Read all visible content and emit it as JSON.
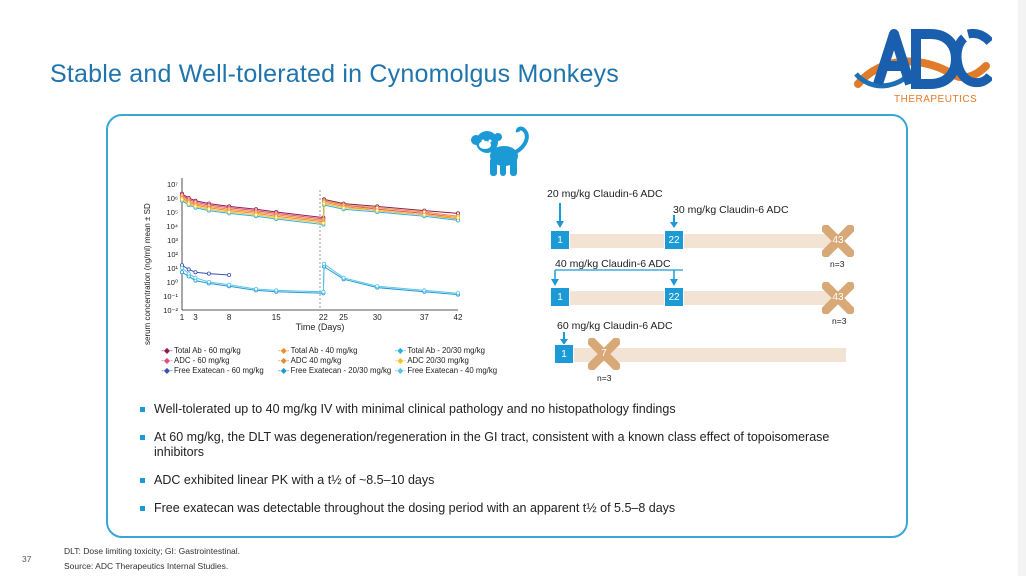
{
  "slide": {
    "title": "Stable and Well-tolerated in Cynomolgus Monkeys",
    "page_number": "37"
  },
  "logo": {
    "brand": "ADC",
    "subtitle": "THERAPEUTICS"
  },
  "chart_data": {
    "type": "line",
    "title": "",
    "ylabel": "serum concentration (ng/ml) mean ± SD",
    "xlabel": "Time (Days)",
    "x_ticks": [
      "1",
      "3",
      "8",
      "15",
      "22",
      "25",
      "30",
      "37",
      "42"
    ],
    "y_ticks": [
      "10⁷",
      "10⁶",
      "10⁵",
      "10⁴",
      "10³",
      "10²",
      "10¹",
      "10⁰",
      "10⁻¹",
      "10⁻²"
    ],
    "ylim": [
      -2,
      7
    ],
    "xlim": [
      1,
      42
    ],
    "y_scale": "log10",
    "series": [
      {
        "name": "Total Ab - 60 mg/kg",
        "color": "#8b1e4f",
        "x": [
          1,
          2,
          3,
          5,
          8,
          12,
          15,
          22,
          22.1,
          25,
          30,
          37,
          42
        ],
        "y": [
          6.3,
          6.0,
          5.8,
          5.6,
          5.4,
          5.2,
          5.0,
          4.6,
          5.9,
          5.6,
          5.4,
          5.1,
          4.9
        ]
      },
      {
        "name": "ADC - 60 mg/kg",
        "color": "#e0507a",
        "x": [
          1,
          2,
          3,
          5,
          8,
          12,
          15,
          22,
          22.1,
          25,
          30,
          37,
          42
        ],
        "y": [
          6.2,
          5.9,
          5.7,
          5.5,
          5.3,
          5.1,
          4.9,
          4.5,
          5.8,
          5.5,
          5.2,
          4.9,
          4.6
        ]
      },
      {
        "name": "Free Exatecan - 60 mg/kg",
        "color": "#3d4fb5",
        "x": [
          1,
          2,
          3,
          5,
          8
        ],
        "y": [
          1.2,
          0.9,
          0.7,
          0.6,
          0.5
        ]
      },
      {
        "name": "Total Ab - 40 mg/kg",
        "color": "#f08c2e",
        "x": [
          1,
          2,
          3,
          5,
          8,
          12,
          15,
          22,
          22.1,
          25,
          30,
          37,
          42
        ],
        "y": [
          6.1,
          5.8,
          5.6,
          5.4,
          5.2,
          5.0,
          4.8,
          4.4,
          5.8,
          5.5,
          5.3,
          5.0,
          4.7
        ]
      },
      {
        "name": "ADC 40 mg/kg",
        "color": "#e88a3a",
        "x": [
          1,
          2,
          3,
          5,
          8,
          12,
          15,
          22,
          22.1,
          25,
          30,
          37,
          42
        ],
        "y": [
          6.0,
          5.7,
          5.5,
          5.3,
          5.1,
          4.9,
          4.7,
          4.3,
          5.7,
          5.4,
          5.1,
          4.8,
          4.5
        ]
      },
      {
        "name": "Free Exatecan - 20/30 mg/kg",
        "color": "#1f9ad6",
        "x": [
          1,
          2,
          3,
          5,
          8,
          12,
          15,
          22,
          22.1,
          25,
          30,
          37,
          42
        ],
        "y": [
          0.7,
          0.4,
          0.1,
          -0.1,
          -0.3,
          -0.6,
          -0.7,
          -0.8,
          1.1,
          0.2,
          -0.4,
          -0.7,
          -0.9
        ]
      },
      {
        "name": "Total Ab - 20/30 mg/kg",
        "color": "#2cb0e3",
        "x": [
          1,
          2,
          3,
          5,
          8,
          12,
          15,
          22,
          22.1,
          25,
          30,
          37,
          42
        ],
        "y": [
          5.8,
          5.5,
          5.3,
          5.1,
          4.9,
          4.7,
          4.5,
          4.1,
          5.5,
          5.2,
          5.0,
          4.7,
          4.4
        ]
      },
      {
        "name": "ADC 20/30 mg/kg",
        "color": "#f2c12e",
        "x": [
          1,
          2,
          3,
          5,
          8,
          12,
          15,
          22,
          22.1,
          25,
          30,
          37,
          42
        ],
        "y": [
          5.9,
          5.6,
          5.4,
          5.2,
          5.0,
          4.8,
          4.6,
          4.2,
          5.6,
          5.3,
          5.1,
          4.8,
          4.6
        ]
      },
      {
        "name": "Free Exatecan - 40 mg/kg",
        "color": "#59c4e8",
        "x": [
          1,
          2,
          3,
          5,
          8,
          12,
          15,
          22,
          22.1,
          25,
          30,
          37,
          42
        ],
        "y": [
          1.0,
          0.6,
          0.3,
          0.0,
          -0.2,
          -0.5,
          -0.6,
          -0.7,
          1.3,
          0.3,
          -0.3,
          -0.6,
          -0.8
        ]
      }
    ],
    "legend": [
      [
        "Total Ab - 60 mg/kg",
        "Total Ab - 40 mg/kg",
        "Total Ab - 20/30 mg/kg"
      ],
      [
        "ADC - 60 mg/kg",
        "ADC 40 mg/kg",
        "ADC 20/30 mg/kg"
      ],
      [
        "Free Exatecan - 60 mg/kg",
        "Free Exatecan - 20/30 mg/kg",
        "Free Exatecan - 40 mg/kg"
      ]
    ]
  },
  "timeline": {
    "arm1": {
      "dose1": "20 mg/kg Claudin-6 ADC",
      "dose2": "30 mg/kg Claudin-6 ADC",
      "day_start": "1",
      "day_mid": "22",
      "day_end": "43",
      "n": "n=3"
    },
    "arm2": {
      "dose": "40 mg/kg Claudin-6 ADC",
      "day_start": "1",
      "day_mid": "22",
      "day_end": "43",
      "n": "n=3"
    },
    "arm3": {
      "dose": "60 mg/kg Claudin-6 ADC",
      "day_start": "1",
      "day_end": "7",
      "n": "n=3"
    }
  },
  "bullets": [
    "Well-tolerated up to 40 mg/kg IV with minimal clinical pathology and no histopathology findings",
    "At 60 mg/kg, the DLT was degeneration/regeneration in the GI tract, consistent with a known class effect of topoisomerase inhibitors",
    "ADC exhibited linear PK with a t½ of  ~8.5–10 days",
    "Free exatecan was detectable throughout the dosing period with an apparent t½ of 5.5–8 days"
  ],
  "footnotes": {
    "line1": "DLT: Dose limiting toxicity; GI: Gastrointestinal.",
    "line2": "Source: ADC Therapeutics Internal Studies."
  },
  "colors": {
    "accent": "#1c9ad6",
    "title": "#1f74ad",
    "panel_border": "#38a7d6",
    "brand_orange": "#e07b2a",
    "bar": "#f2e3d4",
    "x_mark": "#d9a877"
  }
}
